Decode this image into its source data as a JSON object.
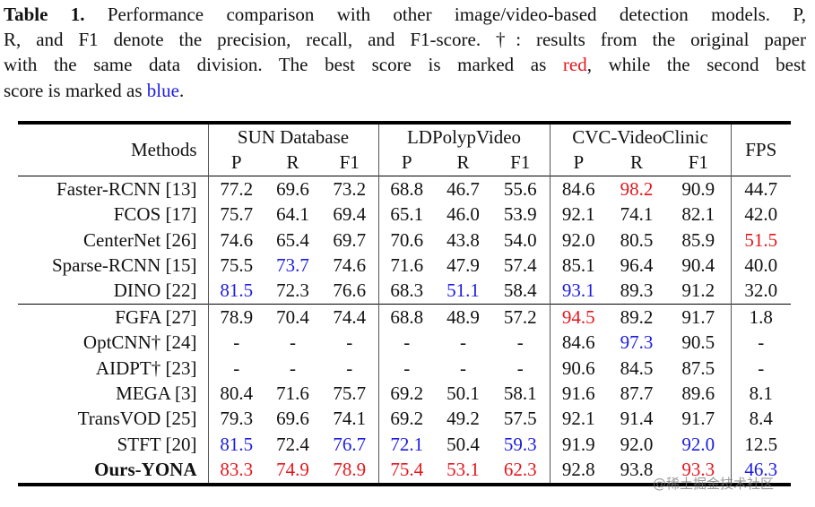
{
  "caption": {
    "label": "Table 1.",
    "line1": " Performance comparison with other image/video-based detection models. P,",
    "line2": "R, and F1 denote the precision, recall, and F1-score. †: results from the original paper",
    "line3_a": "with the same data division. The best score is marked as ",
    "red_word": "red",
    "line3_b": ", while the second best",
    "line4_a": "score is marked as ",
    "blue_word": "blue",
    "line4_b": "."
  },
  "colors": {
    "best": "#e3161d",
    "second": "#1c1ce0"
  },
  "header": {
    "methods": "Methods",
    "groups": [
      "SUN Database",
      "LDPolypVideo",
      "CVC-VideoClinic"
    ],
    "fps": "FPS",
    "metrics": [
      "P",
      "R",
      "F1",
      "P",
      "R",
      "F1",
      "P",
      "R",
      "F1"
    ]
  },
  "image_based": [
    {
      "method": "Faster-RCNN [13]",
      "cells": [
        [
          "77.2",
          ""
        ],
        [
          "69.6",
          ""
        ],
        [
          "73.2",
          ""
        ],
        [
          "68.8",
          ""
        ],
        [
          "46.7",
          ""
        ],
        [
          "55.6",
          ""
        ],
        [
          "84.6",
          ""
        ],
        [
          "98.2",
          "r"
        ],
        [
          "90.9",
          ""
        ],
        [
          "44.7",
          ""
        ]
      ]
    },
    {
      "method": "FCOS [17]",
      "cells": [
        [
          "75.7",
          ""
        ],
        [
          "64.1",
          ""
        ],
        [
          "69.4",
          ""
        ],
        [
          "65.1",
          ""
        ],
        [
          "46.0",
          ""
        ],
        [
          "53.9",
          ""
        ],
        [
          "92.1",
          ""
        ],
        [
          "74.1",
          ""
        ],
        [
          "82.1",
          ""
        ],
        [
          "42.0",
          ""
        ]
      ]
    },
    {
      "method": "CenterNet [26]",
      "cells": [
        [
          "74.6",
          ""
        ],
        [
          "65.4",
          ""
        ],
        [
          "69.7",
          ""
        ],
        [
          "70.6",
          ""
        ],
        [
          "43.8",
          ""
        ],
        [
          "54.0",
          ""
        ],
        [
          "92.0",
          ""
        ],
        [
          "80.5",
          ""
        ],
        [
          "85.9",
          ""
        ],
        [
          "51.5",
          "r"
        ]
      ]
    },
    {
      "method": "Sparse-RCNN [15]",
      "cells": [
        [
          "75.5",
          ""
        ],
        [
          "73.7",
          "b"
        ],
        [
          "74.6",
          ""
        ],
        [
          "71.6",
          ""
        ],
        [
          "47.9",
          ""
        ],
        [
          "57.4",
          ""
        ],
        [
          "85.1",
          ""
        ],
        [
          "96.4",
          ""
        ],
        [
          "90.4",
          ""
        ],
        [
          "40.0",
          ""
        ]
      ]
    },
    {
      "method": "DINO [22]",
      "cells": [
        [
          "81.5",
          "b"
        ],
        [
          "72.3",
          ""
        ],
        [
          "76.6",
          ""
        ],
        [
          "68.3",
          ""
        ],
        [
          "51.1",
          "b"
        ],
        [
          "58.4",
          ""
        ],
        [
          "93.1",
          "b"
        ],
        [
          "89.3",
          ""
        ],
        [
          "91.2",
          ""
        ],
        [
          "32.0",
          ""
        ]
      ]
    }
  ],
  "video_based": [
    {
      "method": "FGFA [27]",
      "cells": [
        [
          "78.9",
          ""
        ],
        [
          "70.4",
          ""
        ],
        [
          "74.4",
          ""
        ],
        [
          "68.8",
          ""
        ],
        [
          "48.9",
          ""
        ],
        [
          "57.2",
          ""
        ],
        [
          "94.5",
          "r"
        ],
        [
          "89.2",
          ""
        ],
        [
          "91.7",
          ""
        ],
        [
          "1.8",
          ""
        ]
      ]
    },
    {
      "method": "OptCNN† [24]",
      "cells": [
        [
          "-",
          ""
        ],
        [
          "-",
          ""
        ],
        [
          "-",
          ""
        ],
        [
          "-",
          ""
        ],
        [
          "-",
          ""
        ],
        [
          "-",
          ""
        ],
        [
          "84.6",
          ""
        ],
        [
          "97.3",
          "b"
        ],
        [
          "90.5",
          ""
        ],
        [
          "-",
          ""
        ]
      ]
    },
    {
      "method": "AIDPT† [23]",
      "cells": [
        [
          "-",
          ""
        ],
        [
          "-",
          ""
        ],
        [
          "-",
          ""
        ],
        [
          "-",
          ""
        ],
        [
          "-",
          ""
        ],
        [
          "-",
          ""
        ],
        [
          "90.6",
          ""
        ],
        [
          "84.5",
          ""
        ],
        [
          "87.5",
          ""
        ],
        [
          "-",
          ""
        ]
      ]
    },
    {
      "method": "MEGA [3]",
      "cells": [
        [
          "80.4",
          ""
        ],
        [
          "71.6",
          ""
        ],
        [
          "75.7",
          ""
        ],
        [
          "69.2",
          ""
        ],
        [
          "50.1",
          ""
        ],
        [
          "58.1",
          ""
        ],
        [
          "91.6",
          ""
        ],
        [
          "87.7",
          ""
        ],
        [
          "89.6",
          ""
        ],
        [
          "8.1",
          ""
        ]
      ]
    },
    {
      "method": "TransVOD [25]",
      "cells": [
        [
          "79.3",
          ""
        ],
        [
          "69.6",
          ""
        ],
        [
          "74.1",
          ""
        ],
        [
          "69.2",
          ""
        ],
        [
          "49.2",
          ""
        ],
        [
          "57.5",
          ""
        ],
        [
          "92.1",
          ""
        ],
        [
          "91.4",
          ""
        ],
        [
          "91.7",
          ""
        ],
        [
          "8.4",
          ""
        ]
      ]
    },
    {
      "method": "STFT [20]",
      "cells": [
        [
          "81.5",
          "b"
        ],
        [
          "72.4",
          ""
        ],
        [
          "76.7",
          "b"
        ],
        [
          "72.1",
          "b"
        ],
        [
          "50.4",
          ""
        ],
        [
          "59.3",
          "b"
        ],
        [
          "91.9",
          ""
        ],
        [
          "92.0",
          ""
        ],
        [
          "92.0",
          "b"
        ],
        [
          "12.5",
          ""
        ]
      ]
    },
    {
      "method": "Ours-YONA",
      "bold": true,
      "cells": [
        [
          "83.3",
          "r"
        ],
        [
          "74.9",
          "r"
        ],
        [
          "78.9",
          "r"
        ],
        [
          "75.4",
          "r"
        ],
        [
          "53.1",
          "r"
        ],
        [
          "62.3",
          "r"
        ],
        [
          "92.8",
          ""
        ],
        [
          "93.8",
          ""
        ],
        [
          "93.3",
          "r"
        ],
        [
          "46.3",
          "b"
        ]
      ]
    }
  ],
  "watermark": "@稀土掘金技术社区"
}
